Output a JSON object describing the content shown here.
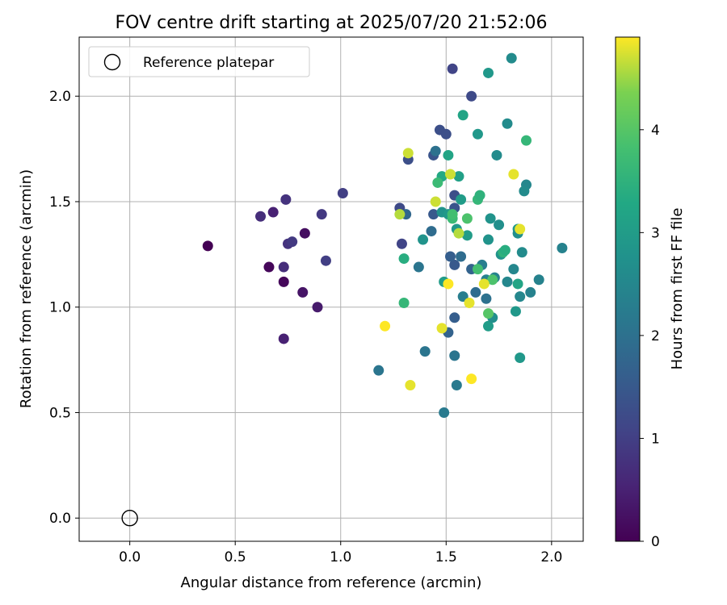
{
  "chart_data": {
    "type": "scatter",
    "title": "FOV centre drift starting at 2025/07/20 21:52:06",
    "xlabel": "Angular distance from reference (arcmin)",
    "ylabel": "Rotation from reference (arcmin)",
    "xlim": [
      -0.24,
      2.15
    ],
    "ylim": [
      -0.11,
      2.28
    ],
    "xticks": [
      0.0,
      0.5,
      1.0,
      1.5,
      2.0
    ],
    "xtick_labels": [
      "0.0",
      "0.5",
      "1.0",
      "1.5",
      "2.0"
    ],
    "yticks": [
      0.0,
      0.5,
      1.0,
      1.5,
      2.0
    ],
    "ytick_labels": [
      "0.0",
      "0.5",
      "1.0",
      "1.5",
      "2.0"
    ],
    "grid": true,
    "legend": {
      "position": "top-left",
      "entries": [
        "Reference platepar"
      ]
    },
    "reference_point": {
      "x": 0.0,
      "y": 0.0,
      "label": "Reference platepar"
    },
    "colorbar": {
      "label": "Hours from first FF file",
      "range": [
        0,
        4.9
      ],
      "ticks": [
        0,
        1,
        2,
        3,
        4
      ],
      "tick_labels": [
        "0",
        "1",
        "2",
        "3",
        "4"
      ],
      "colormap": "viridis"
    },
    "points": [
      {
        "x": 0.37,
        "y": 1.29,
        "c": 0.0
      },
      {
        "x": 0.66,
        "y": 1.19,
        "c": 0.1
      },
      {
        "x": 0.73,
        "y": 1.12,
        "c": 0.1
      },
      {
        "x": 0.83,
        "y": 1.35,
        "c": 0.2
      },
      {
        "x": 0.82,
        "y": 1.07,
        "c": 0.3
      },
      {
        "x": 0.89,
        "y": 1.0,
        "c": 0.4
      },
      {
        "x": 0.68,
        "y": 1.45,
        "c": 0.5
      },
      {
        "x": 0.73,
        "y": 0.85,
        "c": 0.5
      },
      {
        "x": 0.62,
        "y": 1.43,
        "c": 0.7
      },
      {
        "x": 0.73,
        "y": 1.19,
        "c": 0.7
      },
      {
        "x": 0.74,
        "y": 1.51,
        "c": 0.8
      },
      {
        "x": 0.75,
        "y": 1.3,
        "c": 0.8
      },
      {
        "x": 0.77,
        "y": 1.31,
        "c": 0.9
      },
      {
        "x": 0.91,
        "y": 1.44,
        "c": 0.9
      },
      {
        "x": 0.93,
        "y": 1.22,
        "c": 1.0
      },
      {
        "x": 1.01,
        "y": 1.54,
        "c": 1.0
      },
      {
        "x": 1.29,
        "y": 1.3,
        "c": 1.1
      },
      {
        "x": 1.28,
        "y": 1.47,
        "c": 1.2
      },
      {
        "x": 1.53,
        "y": 2.13,
        "c": 1.1
      },
      {
        "x": 1.62,
        "y": 2.0,
        "c": 1.2
      },
      {
        "x": 1.47,
        "y": 1.84,
        "c": 1.3
      },
      {
        "x": 1.5,
        "y": 1.82,
        "c": 1.3
      },
      {
        "x": 1.32,
        "y": 1.7,
        "c": 1.3
      },
      {
        "x": 1.44,
        "y": 1.72,
        "c": 1.4
      },
      {
        "x": 1.54,
        "y": 1.53,
        "c": 1.3
      },
      {
        "x": 1.54,
        "y": 1.47,
        "c": 1.4
      },
      {
        "x": 1.44,
        "y": 1.44,
        "c": 1.5
      },
      {
        "x": 1.54,
        "y": 1.2,
        "c": 1.5
      },
      {
        "x": 1.52,
        "y": 1.24,
        "c": 1.6
      },
      {
        "x": 1.54,
        "y": 0.95,
        "c": 1.6
      },
      {
        "x": 1.51,
        "y": 0.88,
        "c": 1.7
      },
      {
        "x": 1.62,
        "y": 1.18,
        "c": 1.7
      },
      {
        "x": 1.64,
        "y": 1.07,
        "c": 1.9
      },
      {
        "x": 1.31,
        "y": 1.44,
        "c": 1.8
      },
      {
        "x": 1.43,
        "y": 1.36,
        "c": 1.9
      },
      {
        "x": 1.57,
        "y": 1.24,
        "c": 1.9
      },
      {
        "x": 1.69,
        "y": 1.04,
        "c": 2.0
      },
      {
        "x": 1.45,
        "y": 1.74,
        "c": 2.0
      },
      {
        "x": 1.37,
        "y": 1.19,
        "c": 2.1
      },
      {
        "x": 1.4,
        "y": 0.79,
        "c": 2.1
      },
      {
        "x": 1.54,
        "y": 0.77,
        "c": 2.1
      },
      {
        "x": 1.18,
        "y": 0.7,
        "c": 2.1
      },
      {
        "x": 1.49,
        "y": 0.5,
        "c": 2.2
      },
      {
        "x": 1.55,
        "y": 0.63,
        "c": 2.2
      },
      {
        "x": 1.58,
        "y": 1.05,
        "c": 2.3
      },
      {
        "x": 1.67,
        "y": 1.2,
        "c": 2.3
      },
      {
        "x": 1.69,
        "y": 1.13,
        "c": 2.4
      },
      {
        "x": 1.73,
        "y": 1.14,
        "c": 2.4
      },
      {
        "x": 1.79,
        "y": 1.12,
        "c": 2.5
      },
      {
        "x": 1.85,
        "y": 1.05,
        "c": 2.5
      },
      {
        "x": 1.9,
        "y": 1.07,
        "c": 2.4
      },
      {
        "x": 1.94,
        "y": 1.13,
        "c": 2.4
      },
      {
        "x": 2.05,
        "y": 1.28,
        "c": 2.4
      },
      {
        "x": 1.82,
        "y": 1.18,
        "c": 2.5
      },
      {
        "x": 1.86,
        "y": 1.26,
        "c": 2.6
      },
      {
        "x": 1.88,
        "y": 1.58,
        "c": 2.5
      },
      {
        "x": 1.87,
        "y": 1.55,
        "c": 2.6
      },
      {
        "x": 1.79,
        "y": 1.87,
        "c": 2.6
      },
      {
        "x": 1.74,
        "y": 1.72,
        "c": 2.6
      },
      {
        "x": 1.81,
        "y": 2.18,
        "c": 2.6
      },
      {
        "x": 1.7,
        "y": 2.11,
        "c": 2.9
      },
      {
        "x": 1.65,
        "y": 1.82,
        "c": 2.9
      },
      {
        "x": 1.58,
        "y": 1.91,
        "c": 3.2
      },
      {
        "x": 1.57,
        "y": 1.51,
        "c": 3.0
      },
      {
        "x": 1.6,
        "y": 1.34,
        "c": 3.0
      },
      {
        "x": 1.55,
        "y": 1.37,
        "c": 2.9
      },
      {
        "x": 1.7,
        "y": 1.32,
        "c": 2.8
      },
      {
        "x": 1.71,
        "y": 1.42,
        "c": 2.8
      },
      {
        "x": 1.75,
        "y": 1.39,
        "c": 2.7
      },
      {
        "x": 1.76,
        "y": 1.25,
        "c": 2.8
      },
      {
        "x": 1.84,
        "y": 1.37,
        "c": 2.9
      },
      {
        "x": 1.84,
        "y": 1.35,
        "c": 2.7
      },
      {
        "x": 1.83,
        "y": 0.98,
        "c": 2.9
      },
      {
        "x": 1.85,
        "y": 0.76,
        "c": 2.9
      },
      {
        "x": 1.7,
        "y": 0.91,
        "c": 3.0
      },
      {
        "x": 1.72,
        "y": 0.95,
        "c": 2.7
      },
      {
        "x": 1.48,
        "y": 1.45,
        "c": 2.8
      },
      {
        "x": 1.51,
        "y": 1.44,
        "c": 2.9
      },
      {
        "x": 1.49,
        "y": 1.12,
        "c": 3.0
      },
      {
        "x": 1.56,
        "y": 1.62,
        "c": 3.1
      },
      {
        "x": 1.51,
        "y": 1.72,
        "c": 3.2
      },
      {
        "x": 1.48,
        "y": 1.62,
        "c": 3.3
      },
      {
        "x": 1.39,
        "y": 1.32,
        "c": 2.8
      },
      {
        "x": 1.3,
        "y": 1.23,
        "c": 3.4
      },
      {
        "x": 1.3,
        "y": 1.02,
        "c": 3.6
      },
      {
        "x": 1.46,
        "y": 1.59,
        "c": 3.7
      },
      {
        "x": 1.53,
        "y": 1.42,
        "c": 3.7
      },
      {
        "x": 1.53,
        "y": 1.44,
        "c": 3.8
      },
      {
        "x": 1.6,
        "y": 1.42,
        "c": 3.9
      },
      {
        "x": 1.65,
        "y": 1.51,
        "c": 3.6
      },
      {
        "x": 1.66,
        "y": 1.53,
        "c": 3.5
      },
      {
        "x": 1.65,
        "y": 1.18,
        "c": 3.8
      },
      {
        "x": 1.7,
        "y": 0.97,
        "c": 4.0
      },
      {
        "x": 1.72,
        "y": 1.13,
        "c": 3.9
      },
      {
        "x": 1.84,
        "y": 1.11,
        "c": 3.2
      },
      {
        "x": 1.77,
        "y": 1.26,
        "c": 3.5
      },
      {
        "x": 1.78,
        "y": 1.27,
        "c": 3.4
      },
      {
        "x": 1.88,
        "y": 1.79,
        "c": 3.6
      },
      {
        "x": 1.56,
        "y": 1.35,
        "c": 4.6
      },
      {
        "x": 1.45,
        "y": 1.5,
        "c": 4.7
      },
      {
        "x": 1.51,
        "y": 1.11,
        "c": 4.9
      },
      {
        "x": 1.52,
        "y": 1.63,
        "c": 4.7
      },
      {
        "x": 1.61,
        "y": 1.02,
        "c": 4.8
      },
      {
        "x": 1.62,
        "y": 0.66,
        "c": 4.9
      },
      {
        "x": 1.33,
        "y": 0.63,
        "c": 4.8
      },
      {
        "x": 1.21,
        "y": 0.91,
        "c": 4.9
      },
      {
        "x": 1.48,
        "y": 0.9,
        "c": 4.8
      },
      {
        "x": 1.32,
        "y": 1.73,
        "c": 4.7
      },
      {
        "x": 1.28,
        "y": 1.44,
        "c": 4.6
      },
      {
        "x": 1.68,
        "y": 1.11,
        "c": 4.8
      },
      {
        "x": 1.82,
        "y": 1.63,
        "c": 4.8
      },
      {
        "x": 1.85,
        "y": 1.37,
        "c": 4.8
      }
    ]
  }
}
